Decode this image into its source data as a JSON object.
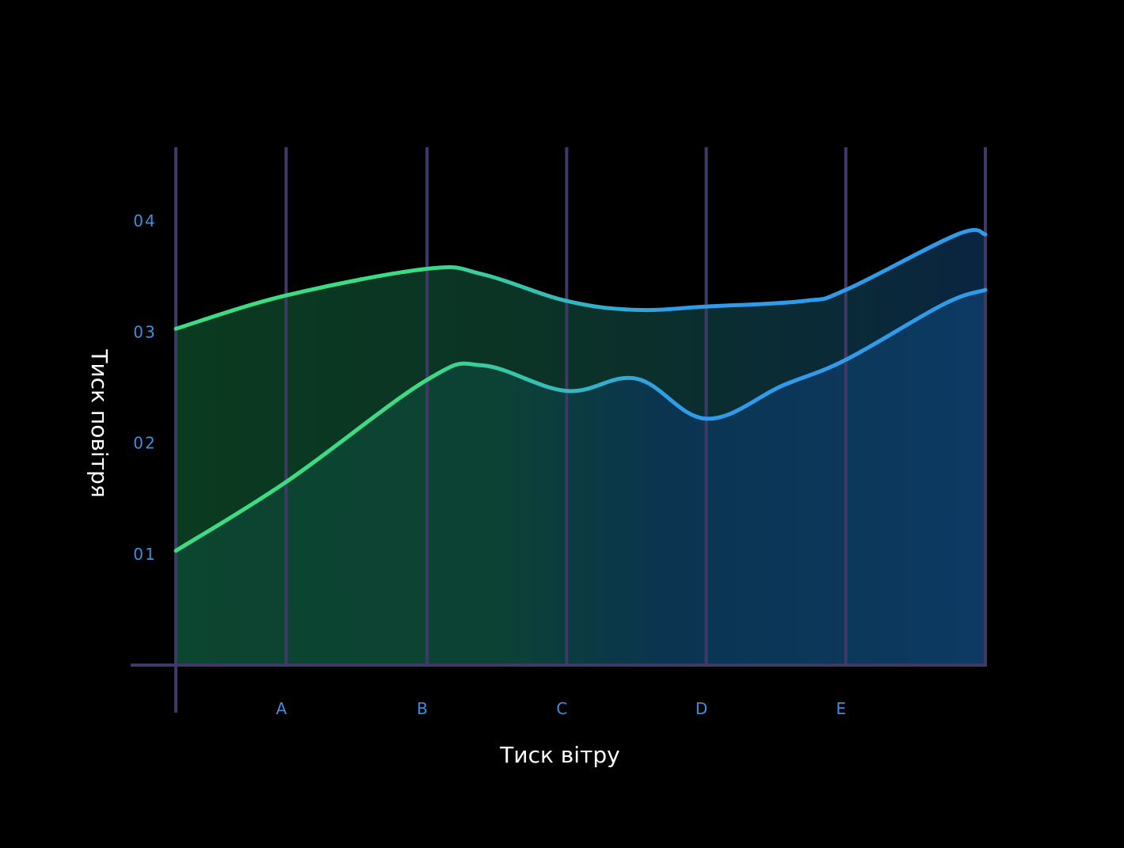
{
  "chart_data": {
    "type": "area",
    "xlabel": "Тиск вітру",
    "ylabel": "Тиск повітря",
    "categories": [
      "A",
      "B",
      "C",
      "D",
      "E"
    ],
    "x_range": [
      0,
      5.8
    ],
    "y_range": [
      0,
      0.45
    ],
    "y_ticks": [
      {
        "value": 0.1,
        "label": "01"
      },
      {
        "value": 0.2,
        "label": "02"
      },
      {
        "value": 0.3,
        "label": "03"
      },
      {
        "value": 0.4,
        "label": "04"
      }
    ],
    "category_positions": [
      0.79,
      1.8,
      2.8,
      3.8,
      4.8
    ],
    "gridlines_x": [
      0,
      0.79,
      1.8,
      2.8,
      3.8,
      4.8,
      5.8
    ],
    "series": [
      {
        "x": [
          0,
          0.79,
          1.8,
          2.2,
          2.8,
          3.3,
          3.8,
          4.5,
          4.8,
          5.6,
          5.8
        ],
        "values": [
          0.303,
          0.333,
          0.357,
          0.352,
          0.328,
          0.32,
          0.323,
          0.328,
          0.338,
          0.388,
          0.388
        ]
      },
      {
        "x": [
          0,
          0.79,
          1.8,
          2.2,
          2.8,
          3.3,
          3.8,
          4.35,
          4.8,
          5.5,
          5.8
        ],
        "values": [
          0.103,
          0.165,
          0.257,
          0.27,
          0.247,
          0.258,
          0.222,
          0.252,
          0.275,
          0.325,
          0.338
        ]
      }
    ],
    "colors": {
      "line_start": "#3ddc84",
      "line_end": "#2f9bea",
      "grid": "#3d3a66",
      "tick_label": "#3f8fe0",
      "axis_title": "#ffffff",
      "background": "#000000"
    },
    "grid": true,
    "legend": "none"
  }
}
